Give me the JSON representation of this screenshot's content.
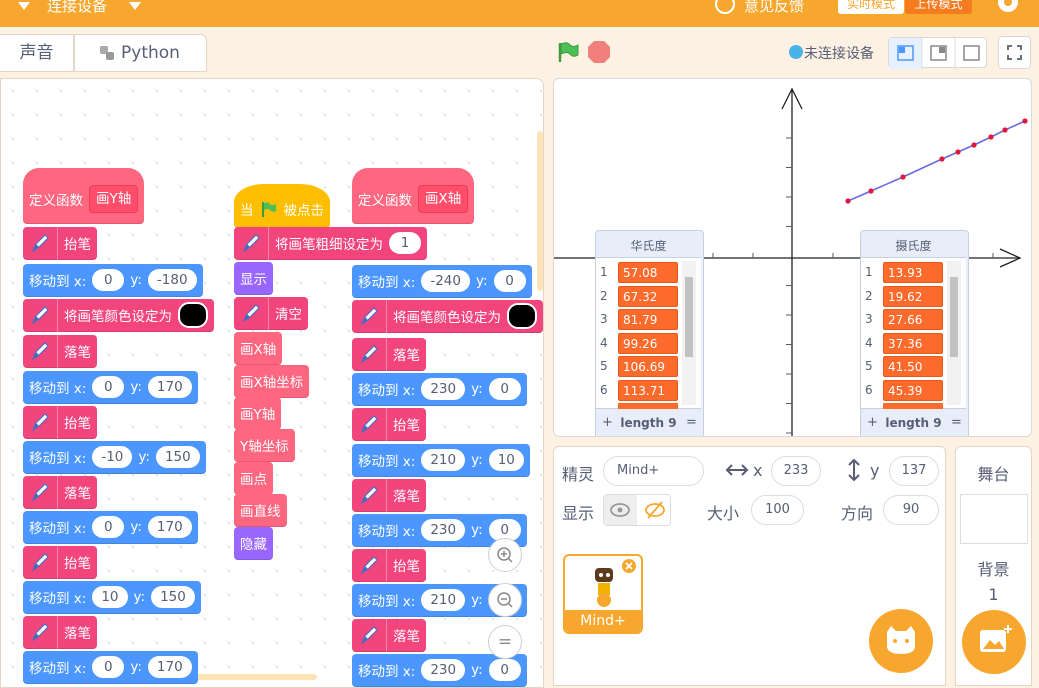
{
  "menu": {
    "connect": "连接设备",
    "feedback": "意见反馈",
    "realtime": "实时模式",
    "upload": "上传模式"
  },
  "tabs": [
    "声音",
    "Python"
  ],
  "stage_header": {
    "status": "未连接设备"
  },
  "lists": [
    {
      "title": "华氏度",
      "rows": [
        {
          "index": "1",
          "value": "57.08"
        },
        {
          "index": "2",
          "value": "67.32"
        },
        {
          "index": "3",
          "value": "81.79"
        },
        {
          "index": "4",
          "value": "99.26"
        },
        {
          "index": "5",
          "value": "106.69"
        },
        {
          "index": "6",
          "value": "113.71"
        }
      ],
      "length": "length 9"
    },
    {
      "title": "摄氏度",
      "rows": [
        {
          "index": "1",
          "value": "13.93"
        },
        {
          "index": "2",
          "value": "19.62"
        },
        {
          "index": "3",
          "value": "27.66"
        },
        {
          "index": "4",
          "value": "37.36"
        },
        {
          "index": "5",
          "value": "41.50"
        },
        {
          "index": "6",
          "value": "45.39"
        }
      ],
      "length": "length 9"
    }
  ],
  "list_controls": {
    "add": "+",
    "resize": "="
  },
  "sprite": {
    "label": "精灵",
    "name": "Mind+",
    "x_label": "x",
    "x": "233",
    "y_label": "y",
    "y": "137",
    "show_label": "显示",
    "size_label": "大小",
    "size": "100",
    "direction_label": "方向",
    "direction": "90",
    "thumbnail_name": "Mind+"
  },
  "stage_panel": {
    "title": "舞台",
    "backdrop_label": "背景",
    "backdrop_count": "1"
  },
  "zoom": {
    "reset": "="
  },
  "scripts": [
    {
      "blocks": [
        {
          "color": "#ff6680",
          "shape": "define",
          "parts": [
            {
              "t": "定义函数"
            },
            {
              "arg": "画Y轴"
            }
          ]
        },
        {
          "color": "#f2457d",
          "pen": true,
          "parts": [
            {
              "t": "抬笔"
            }
          ]
        },
        {
          "color": "#4c97ff",
          "parts": [
            {
              "t": "移动到 x:"
            },
            {
              "in": "0"
            },
            {
              "t": "y:"
            },
            {
              "in": "-180"
            }
          ]
        },
        {
          "color": "#f2457d",
          "pen": true,
          "parts": [
            {
              "t": "将画笔颜色设定为"
            },
            {
              "swatch": "#000000"
            }
          ]
        },
        {
          "color": "#f2457d",
          "pen": true,
          "parts": [
            {
              "t": "落笔"
            }
          ]
        },
        {
          "color": "#4c97ff",
          "parts": [
            {
              "t": "移动到 x:"
            },
            {
              "in": "0"
            },
            {
              "t": "y:"
            },
            {
              "in": "170"
            }
          ]
        },
        {
          "color": "#f2457d",
          "pen": true,
          "parts": [
            {
              "t": "抬笔"
            }
          ]
        },
        {
          "color": "#4c97ff",
          "parts": [
            {
              "t": "移动到 x:"
            },
            {
              "in": "-10"
            },
            {
              "t": "y:"
            },
            {
              "in": "150"
            }
          ]
        },
        {
          "color": "#f2457d",
          "pen": true,
          "parts": [
            {
              "t": "落笔"
            }
          ]
        },
        {
          "color": "#4c97ff",
          "parts": [
            {
              "t": "移动到 x:"
            },
            {
              "in": "0"
            },
            {
              "t": "y:"
            },
            {
              "in": "170"
            }
          ]
        },
        {
          "color": "#f2457d",
          "pen": true,
          "parts": [
            {
              "t": "抬笔"
            }
          ]
        },
        {
          "color": "#4c97ff",
          "parts": [
            {
              "t": "移动到 x:"
            },
            {
              "in": "10"
            },
            {
              "t": "y:"
            },
            {
              "in": "150"
            }
          ]
        },
        {
          "color": "#f2457d",
          "pen": true,
          "parts": [
            {
              "t": "落笔"
            }
          ]
        },
        {
          "color": "#4c97ff",
          "parts": [
            {
              "t": "移动到 x:"
            },
            {
              "in": "0"
            },
            {
              "t": "y:"
            },
            {
              "in": "170"
            }
          ]
        }
      ]
    },
    {
      "blocks": [
        {
          "color": "#ffbf00",
          "shape": "hat",
          "parts": [
            {
              "t": "当"
            },
            {
              "icon": "flag"
            },
            {
              "t": "被点击"
            }
          ]
        },
        {
          "color": "#f2457d",
          "pen": true,
          "parts": [
            {
              "t": "将画笔粗细设定为"
            },
            {
              "in": "1"
            }
          ]
        },
        {
          "color": "#9966ff",
          "parts": [
            {
              "t": "显示"
            }
          ]
        },
        {
          "color": "#f2457d",
          "pen": true,
          "parts": [
            {
              "t": "清空"
            }
          ]
        },
        {
          "color": "#ff6680",
          "parts": [
            {
              "t": "画X轴"
            }
          ]
        },
        {
          "color": "#ff6680",
          "parts": [
            {
              "t": "画X轴坐标"
            }
          ]
        },
        {
          "color": "#ff6680",
          "parts": [
            {
              "t": "画Y轴"
            }
          ]
        },
        {
          "color": "#ff6680",
          "parts": [
            {
              "t": "Y轴坐标"
            }
          ]
        },
        {
          "color": "#ff6680",
          "parts": [
            {
              "t": "画点"
            }
          ]
        },
        {
          "color": "#ff6680",
          "parts": [
            {
              "t": "画直线"
            }
          ]
        },
        {
          "color": "#9966ff",
          "parts": [
            {
              "t": "隐藏"
            }
          ]
        }
      ]
    },
    {
      "blocks": [
        {
          "color": "#ff6680",
          "shape": "define",
          "parts": [
            {
              "t": "定义函数"
            },
            {
              "arg": "画X轴"
            }
          ]
        },
        {
          "color": "#4c97ff",
          "parts": [
            {
              "t": "移动到 x:"
            },
            {
              "in": "-240"
            },
            {
              "t": "y:"
            },
            {
              "in": "0"
            }
          ]
        },
        {
          "color": "#f2457d",
          "pen": true,
          "parts": [
            {
              "t": "将画笔颜色设定为"
            },
            {
              "swatch": "#000000"
            }
          ]
        },
        {
          "color": "#f2457d",
          "pen": true,
          "parts": [
            {
              "t": "落笔"
            }
          ]
        },
        {
          "color": "#4c97ff",
          "parts": [
            {
              "t": "移动到 x:"
            },
            {
              "in": "230"
            },
            {
              "t": "y:"
            },
            {
              "in": "0"
            }
          ]
        },
        {
          "color": "#f2457d",
          "pen": true,
          "parts": [
            {
              "t": "抬笔"
            }
          ]
        },
        {
          "color": "#4c97ff",
          "parts": [
            {
              "t": "移动到 x:"
            },
            {
              "in": "210"
            },
            {
              "t": "y:"
            },
            {
              "in": "10"
            }
          ]
        },
        {
          "color": "#f2457d",
          "pen": true,
          "parts": [
            {
              "t": "落笔"
            }
          ]
        },
        {
          "color": "#4c97ff",
          "parts": [
            {
              "t": "移动到 x:"
            },
            {
              "in": "230"
            },
            {
              "t": "y:"
            },
            {
              "in": "0"
            }
          ]
        },
        {
          "color": "#f2457d",
          "pen": true,
          "parts": [
            {
              "t": "抬笔"
            }
          ]
        },
        {
          "color": "#4c97ff",
          "parts": [
            {
              "t": "移动到 x:"
            },
            {
              "in": "210"
            },
            {
              "t": "y:"
            },
            {
              "in": null
            }
          ]
        },
        {
          "color": "#f2457d",
          "pen": true,
          "parts": [
            {
              "t": "落笔"
            }
          ]
        },
        {
          "color": "#4c97ff",
          "parts": [
            {
              "t": "移动到 x:"
            },
            {
              "in": "230"
            },
            {
              "t": "y:"
            },
            {
              "in": "0"
            }
          ]
        }
      ]
    }
  ]
}
